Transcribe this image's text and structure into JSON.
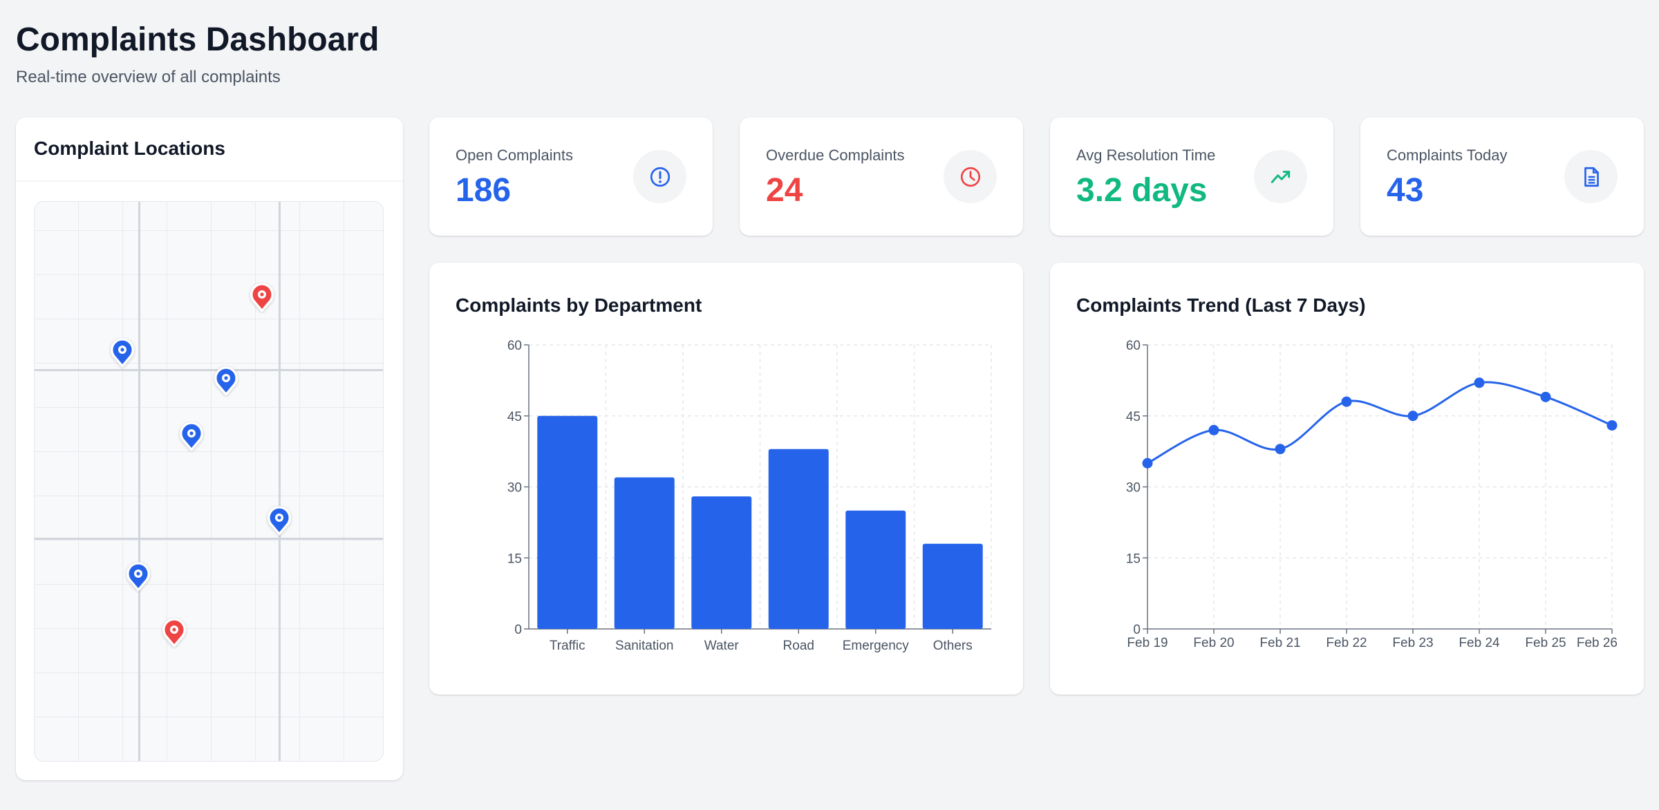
{
  "header": {
    "title": "Complaints Dashboard",
    "subtitle": "Real-time overview of all complaints"
  },
  "map": {
    "title": "Complaint Locations",
    "pins": [
      {
        "status": "overdue",
        "color": "#ef4444"
      },
      {
        "status": "open",
        "color": "#2563eb"
      },
      {
        "status": "open",
        "color": "#2563eb"
      },
      {
        "status": "open",
        "color": "#2563eb"
      },
      {
        "status": "open",
        "color": "#2563eb"
      },
      {
        "status": "open",
        "color": "#2563eb"
      },
      {
        "status": "overdue",
        "color": "#ef4444"
      }
    ]
  },
  "stats": [
    {
      "label": "Open Complaints",
      "value": "186",
      "color": "#2563eb",
      "icon": "exclamation-circle-icon"
    },
    {
      "label": "Overdue Complaints",
      "value": "24",
      "color": "#ef4444",
      "icon": "clock-icon"
    },
    {
      "label": "Avg Resolution Time",
      "value": "3.2 days",
      "color": "#10b981",
      "icon": "trending-up-icon"
    },
    {
      "label": "Complaints Today",
      "value": "43",
      "color": "#2563eb",
      "icon": "document-icon"
    }
  ],
  "chart_data": [
    {
      "type": "bar",
      "title": "Complaints by Department",
      "categories": [
        "Traffic",
        "Sanitation",
        "Water",
        "Road",
        "Emergency",
        "Others"
      ],
      "values": [
        45,
        32,
        28,
        38,
        25,
        18
      ],
      "ylim": [
        0,
        60
      ],
      "yticks": [
        0,
        15,
        30,
        45,
        60
      ],
      "grid": true,
      "color": "#2563eb"
    },
    {
      "type": "line",
      "title": "Complaints Trend (Last 7 Days)",
      "categories": [
        "Feb 19",
        "Feb 20",
        "Feb 21",
        "Feb 22",
        "Feb 23",
        "Feb 24",
        "Feb 25",
        "Feb 26"
      ],
      "values": [
        35,
        42,
        38,
        48,
        45,
        52,
        49,
        43
      ],
      "ylim": [
        0,
        60
      ],
      "yticks": [
        0,
        15,
        30,
        45,
        60
      ],
      "grid": true,
      "color": "#2563eb",
      "smooth": true
    }
  ]
}
